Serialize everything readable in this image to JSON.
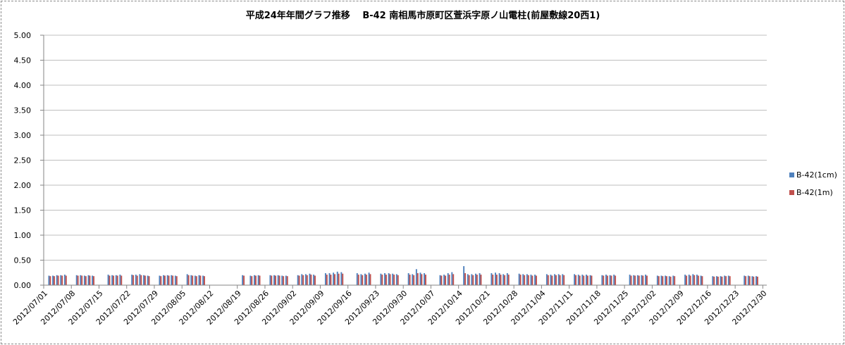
{
  "chart_data": {
    "type": "bar",
    "title": "平成24年年間グラフ推移　 B-42 南相馬市原町区萱浜字原ノ山電柱(前屋敷線20西1)",
    "xlabel": "",
    "ylabel": "",
    "ylim": [
      0,
      5
    ],
    "yticks": [
      "0.00",
      "0.50",
      "1.00",
      "1.50",
      "2.00",
      "2.50",
      "3.00",
      "3.50",
      "4.00",
      "4.50",
      "5.00"
    ],
    "grid": true,
    "legend_position": "right",
    "x_range": [
      "2012/07/01",
      "2012/12/31"
    ],
    "xtick_labels": [
      "2012/07/01",
      "2012/07/08",
      "2012/07/15",
      "2012/07/22",
      "2012/07/29",
      "2012/08/05",
      "2012/08/12",
      "2012/08/19",
      "2012/08/26",
      "2012/09/02",
      "2012/09/09",
      "2012/09/16",
      "2012/09/23",
      "2012/09/30",
      "2012/10/07",
      "2012/10/14",
      "2012/10/21",
      "2012/10/28",
      "2012/11/04",
      "2012/11/11",
      "2012/11/18",
      "2012/11/25",
      "2012/12/02",
      "2012/12/09",
      "2012/12/16",
      "2012/12/23",
      "2012/12/30"
    ],
    "series": [
      {
        "name": "B-42(1cm)",
        "color": "#4f81bd",
        "points": [
          [
            "2012/07/02",
            0.19
          ],
          [
            "2012/07/03",
            0.19
          ],
          [
            "2012/07/04",
            0.2
          ],
          [
            "2012/07/05",
            0.2
          ],
          [
            "2012/07/06",
            0.21
          ],
          [
            "2012/07/09",
            0.2
          ],
          [
            "2012/07/10",
            0.2
          ],
          [
            "2012/07/11",
            0.19
          ],
          [
            "2012/07/12",
            0.2
          ],
          [
            "2012/07/13",
            0.19
          ],
          [
            "2012/07/17",
            0.21
          ],
          [
            "2012/07/18",
            0.2
          ],
          [
            "2012/07/19",
            0.2
          ],
          [
            "2012/07/20",
            0.21
          ],
          [
            "2012/07/23",
            0.21
          ],
          [
            "2012/07/24",
            0.21
          ],
          [
            "2012/07/25",
            0.22
          ],
          [
            "2012/07/26",
            0.2
          ],
          [
            "2012/07/27",
            0.19
          ],
          [
            "2012/07/30",
            0.19
          ],
          [
            "2012/07/31",
            0.2
          ],
          [
            "2012/08/01",
            0.2
          ],
          [
            "2012/08/02",
            0.2
          ],
          [
            "2012/08/03",
            0.19
          ],
          [
            "2012/08/06",
            0.22
          ],
          [
            "2012/08/07",
            0.2
          ],
          [
            "2012/08/08",
            0.19
          ],
          [
            "2012/08/09",
            0.2
          ],
          [
            "2012/08/10",
            0.19
          ],
          [
            "2012/08/20",
            0.2
          ],
          [
            "2012/08/22",
            0.19
          ],
          [
            "2012/08/23",
            0.2
          ],
          [
            "2012/08/24",
            0.2
          ],
          [
            "2012/08/27",
            0.2
          ],
          [
            "2012/08/28",
            0.2
          ],
          [
            "2012/08/29",
            0.2
          ],
          [
            "2012/08/30",
            0.19
          ],
          [
            "2012/08/31",
            0.19
          ],
          [
            "2012/09/03",
            0.2
          ],
          [
            "2012/09/04",
            0.22
          ],
          [
            "2012/09/05",
            0.22
          ],
          [
            "2012/09/06",
            0.23
          ],
          [
            "2012/09/07",
            0.21
          ],
          [
            "2012/09/10",
            0.24
          ],
          [
            "2012/09/11",
            0.24
          ],
          [
            "2012/09/12",
            0.25
          ],
          [
            "2012/09/13",
            0.27
          ],
          [
            "2012/09/14",
            0.26
          ],
          [
            "2012/09/18",
            0.24
          ],
          [
            "2012/09/19",
            0.22
          ],
          [
            "2012/09/20",
            0.23
          ],
          [
            "2012/09/21",
            0.25
          ],
          [
            "2012/09/24",
            0.23
          ],
          [
            "2012/09/25",
            0.24
          ],
          [
            "2012/09/26",
            0.24
          ],
          [
            "2012/09/27",
            0.23
          ],
          [
            "2012/09/28",
            0.22
          ],
          [
            "2012/10/01",
            0.24
          ],
          [
            "2012/10/02",
            0.22
          ],
          [
            "2012/10/03",
            0.32
          ],
          [
            "2012/10/04",
            0.25
          ],
          [
            "2012/10/05",
            0.24
          ],
          [
            "2012/10/09",
            0.2
          ],
          [
            "2012/10/10",
            0.21
          ],
          [
            "2012/10/11",
            0.24
          ],
          [
            "2012/10/12",
            0.26
          ],
          [
            "2012/10/15",
            0.38
          ],
          [
            "2012/10/16",
            0.22
          ],
          [
            "2012/10/17",
            0.22
          ],
          [
            "2012/10/18",
            0.23
          ],
          [
            "2012/10/19",
            0.24
          ],
          [
            "2012/10/22",
            0.24
          ],
          [
            "2012/10/23",
            0.25
          ],
          [
            "2012/10/24",
            0.24
          ],
          [
            "2012/10/25",
            0.22
          ],
          [
            "2012/10/26",
            0.24
          ],
          [
            "2012/10/29",
            0.23
          ],
          [
            "2012/10/30",
            0.22
          ],
          [
            "2012/10/31",
            0.22
          ],
          [
            "2012/11/01",
            0.21
          ],
          [
            "2012/11/02",
            0.21
          ],
          [
            "2012/11/05",
            0.22
          ],
          [
            "2012/11/06",
            0.21
          ],
          [
            "2012/11/07",
            0.22
          ],
          [
            "2012/11/08",
            0.22
          ],
          [
            "2012/11/09",
            0.22
          ],
          [
            "2012/11/12",
            0.22
          ],
          [
            "2012/11/13",
            0.21
          ],
          [
            "2012/11/14",
            0.21
          ],
          [
            "2012/11/15",
            0.21
          ],
          [
            "2012/11/16",
            0.2
          ],
          [
            "2012/11/19",
            0.2
          ],
          [
            "2012/11/20",
            0.21
          ],
          [
            "2012/11/21",
            0.2
          ],
          [
            "2012/11/22",
            0.21
          ],
          [
            "2012/11/26",
            0.21
          ],
          [
            "2012/11/27",
            0.2
          ],
          [
            "2012/11/28",
            0.2
          ],
          [
            "2012/11/29",
            0.2
          ],
          [
            "2012/11/30",
            0.21
          ],
          [
            "2012/12/03",
            0.19
          ],
          [
            "2012/12/04",
            0.19
          ],
          [
            "2012/12/05",
            0.19
          ],
          [
            "2012/12/06",
            0.18
          ],
          [
            "2012/12/07",
            0.19
          ],
          [
            "2012/12/10",
            0.21
          ],
          [
            "2012/12/11",
            0.21
          ],
          [
            "2012/12/12",
            0.22
          ],
          [
            "2012/12/13",
            0.21
          ],
          [
            "2012/12/14",
            0.19
          ],
          [
            "2012/12/17",
            0.18
          ],
          [
            "2012/12/18",
            0.18
          ],
          [
            "2012/12/19",
            0.18
          ],
          [
            "2012/12/20",
            0.19
          ],
          [
            "2012/12/21",
            0.19
          ],
          [
            "2012/12/25",
            0.19
          ],
          [
            "2012/12/26",
            0.19
          ],
          [
            "2012/12/27",
            0.18
          ],
          [
            "2012/12/28",
            0.18
          ]
        ]
      },
      {
        "name": "B-42(1m)",
        "color": "#c0504d",
        "points": [
          [
            "2012/07/02",
            0.18
          ],
          [
            "2012/07/03",
            0.18
          ],
          [
            "2012/07/04",
            0.19
          ],
          [
            "2012/07/05",
            0.19
          ],
          [
            "2012/07/06",
            0.19
          ],
          [
            "2012/07/09",
            0.19
          ],
          [
            "2012/07/10",
            0.19
          ],
          [
            "2012/07/11",
            0.18
          ],
          [
            "2012/07/12",
            0.19
          ],
          [
            "2012/07/13",
            0.18
          ],
          [
            "2012/07/17",
            0.19
          ],
          [
            "2012/07/18",
            0.19
          ],
          [
            "2012/07/19",
            0.19
          ],
          [
            "2012/07/20",
            0.19
          ],
          [
            "2012/07/23",
            0.2
          ],
          [
            "2012/07/24",
            0.19
          ],
          [
            "2012/07/25",
            0.2
          ],
          [
            "2012/07/26",
            0.19
          ],
          [
            "2012/07/27",
            0.18
          ],
          [
            "2012/07/30",
            0.18
          ],
          [
            "2012/07/31",
            0.19
          ],
          [
            "2012/08/01",
            0.19
          ],
          [
            "2012/08/02",
            0.19
          ],
          [
            "2012/08/03",
            0.18
          ],
          [
            "2012/08/06",
            0.2
          ],
          [
            "2012/08/07",
            0.19
          ],
          [
            "2012/08/08",
            0.18
          ],
          [
            "2012/08/09",
            0.19
          ],
          [
            "2012/08/10",
            0.18
          ],
          [
            "2012/08/20",
            0.19
          ],
          [
            "2012/08/22",
            0.18
          ],
          [
            "2012/08/23",
            0.19
          ],
          [
            "2012/08/24",
            0.19
          ],
          [
            "2012/08/27",
            0.19
          ],
          [
            "2012/08/28",
            0.19
          ],
          [
            "2012/08/29",
            0.19
          ],
          [
            "2012/08/30",
            0.18
          ],
          [
            "2012/08/31",
            0.18
          ],
          [
            "2012/09/03",
            0.19
          ],
          [
            "2012/09/04",
            0.2
          ],
          [
            "2012/09/05",
            0.2
          ],
          [
            "2012/09/06",
            0.21
          ],
          [
            "2012/09/07",
            0.19
          ],
          [
            "2012/09/10",
            0.21
          ],
          [
            "2012/09/11",
            0.21
          ],
          [
            "2012/09/12",
            0.22
          ],
          [
            "2012/09/13",
            0.23
          ],
          [
            "2012/09/14",
            0.23
          ],
          [
            "2012/09/18",
            0.21
          ],
          [
            "2012/09/19",
            0.2
          ],
          [
            "2012/09/20",
            0.21
          ],
          [
            "2012/09/21",
            0.22
          ],
          [
            "2012/09/24",
            0.21
          ],
          [
            "2012/09/25",
            0.21
          ],
          [
            "2012/09/26",
            0.22
          ],
          [
            "2012/09/27",
            0.21
          ],
          [
            "2012/09/28",
            0.2
          ],
          [
            "2012/10/01",
            0.21
          ],
          [
            "2012/10/02",
            0.2
          ],
          [
            "2012/10/03",
            0.24
          ],
          [
            "2012/10/04",
            0.22
          ],
          [
            "2012/10/05",
            0.21
          ],
          [
            "2012/10/09",
            0.19
          ],
          [
            "2012/10/10",
            0.19
          ],
          [
            "2012/10/11",
            0.21
          ],
          [
            "2012/10/12",
            0.22
          ],
          [
            "2012/10/15",
            0.24
          ],
          [
            "2012/10/16",
            0.2
          ],
          [
            "2012/10/17",
            0.2
          ],
          [
            "2012/10/18",
            0.21
          ],
          [
            "2012/10/19",
            0.21
          ],
          [
            "2012/10/22",
            0.21
          ],
          [
            "2012/10/23",
            0.21
          ],
          [
            "2012/10/24",
            0.21
          ],
          [
            "2012/10/25",
            0.2
          ],
          [
            "2012/10/26",
            0.21
          ],
          [
            "2012/10/29",
            0.21
          ],
          [
            "2012/10/30",
            0.2
          ],
          [
            "2012/10/31",
            0.2
          ],
          [
            "2012/11/01",
            0.19
          ],
          [
            "2012/11/02",
            0.19
          ],
          [
            "2012/11/05",
            0.2
          ],
          [
            "2012/11/06",
            0.19
          ],
          [
            "2012/11/07",
            0.2
          ],
          [
            "2012/11/08",
            0.2
          ],
          [
            "2012/11/09",
            0.2
          ],
          [
            "2012/11/12",
            0.2
          ],
          [
            "2012/11/13",
            0.19
          ],
          [
            "2012/11/14",
            0.19
          ],
          [
            "2012/11/15",
            0.19
          ],
          [
            "2012/11/16",
            0.19
          ],
          [
            "2012/11/19",
            0.19
          ],
          [
            "2012/11/20",
            0.19
          ],
          [
            "2012/11/21",
            0.19
          ],
          [
            "2012/11/22",
            0.19
          ],
          [
            "2012/11/26",
            0.19
          ],
          [
            "2012/11/27",
            0.19
          ],
          [
            "2012/11/28",
            0.19
          ],
          [
            "2012/11/29",
            0.19
          ],
          [
            "2012/11/30",
            0.19
          ],
          [
            "2012/12/03",
            0.18
          ],
          [
            "2012/12/04",
            0.18
          ],
          [
            "2012/12/05",
            0.18
          ],
          [
            "2012/12/06",
            0.17
          ],
          [
            "2012/12/07",
            0.18
          ],
          [
            "2012/12/10",
            0.19
          ],
          [
            "2012/12/11",
            0.19
          ],
          [
            "2012/12/12",
            0.2
          ],
          [
            "2012/12/13",
            0.19
          ],
          [
            "2012/12/14",
            0.18
          ],
          [
            "2012/12/17",
            0.17
          ],
          [
            "2012/12/18",
            0.17
          ],
          [
            "2012/12/19",
            0.17
          ],
          [
            "2012/12/20",
            0.18
          ],
          [
            "2012/12/21",
            0.18
          ],
          [
            "2012/12/25",
            0.18
          ],
          [
            "2012/12/26",
            0.18
          ],
          [
            "2012/12/27",
            0.17
          ],
          [
            "2012/12/28",
            0.17
          ]
        ]
      }
    ]
  }
}
